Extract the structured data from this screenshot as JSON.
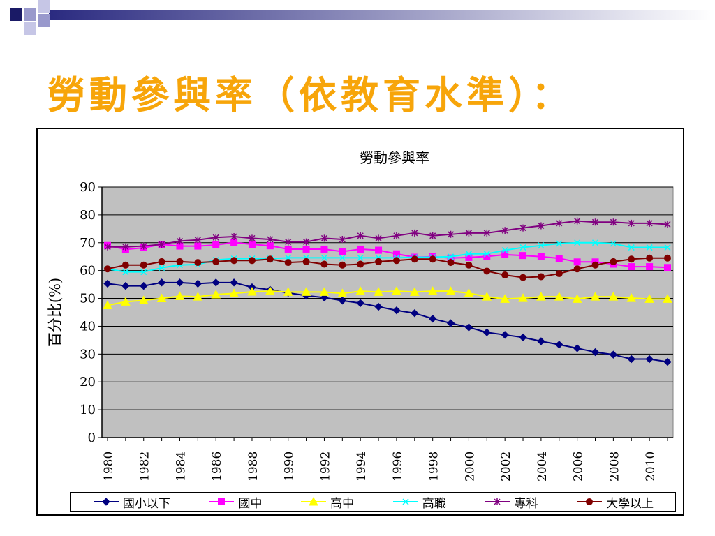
{
  "slide": {
    "title": "勞動參與率（依教育水準）："
  },
  "chart_data": {
    "type": "line",
    "title": "勞動參與率",
    "ylabel": "百分比(%)",
    "xlabel": "",
    "ylim": [
      0,
      90
    ],
    "yticks": [
      0,
      10,
      20,
      30,
      40,
      50,
      60,
      70,
      80,
      90
    ],
    "xticks": [
      "1980",
      "1982",
      "1984",
      "1986",
      "1988",
      "1990",
      "1992",
      "1994",
      "1996",
      "1998",
      "2000",
      "2002",
      "2004",
      "2006",
      "2008",
      "2010"
    ],
    "grid": true,
    "legend": "bottom",
    "x": [
      1980,
      1981,
      1982,
      1983,
      1984,
      1985,
      1986,
      1987,
      1988,
      1989,
      1990,
      1991,
      1992,
      1993,
      1994,
      1995,
      1996,
      1997,
      1998,
      1999,
      2000,
      2001,
      2002,
      2003,
      2004,
      2005,
      2006,
      2007,
      2008,
      2009,
      2010,
      2011
    ],
    "series": [
      {
        "name": "國小以下",
        "color": "#000080",
        "marker": "diamond",
        "values": [
          55.3,
          54.5,
          54.5,
          55.7,
          55.7,
          55.3,
          55.7,
          55.7,
          54,
          53.1,
          52,
          51,
          50.3,
          49.2,
          48.3,
          47,
          45.7,
          44.7,
          42.7,
          41.1,
          39.6,
          37.8,
          36.9,
          36,
          34.6,
          33.4,
          32.1,
          30.7,
          29.8,
          28.2,
          28.2,
          27.2
        ]
      },
      {
        "name": "國中",
        "color": "#ff00ff",
        "marker": "square",
        "values": [
          69,
          67.6,
          68.2,
          69.4,
          68.8,
          68.8,
          69.2,
          70.1,
          69.4,
          68.9,
          67.7,
          67.7,
          67.7,
          66.8,
          67.7,
          67.3,
          66,
          64.8,
          65,
          64.5,
          64.7,
          65.1,
          65.7,
          65.4,
          65,
          64.4,
          63.1,
          63.1,
          62.3,
          61.4,
          61.4,
          61.1
        ]
      },
      {
        "name": "高中",
        "color": "#ffff00",
        "marker": "triangle",
        "values": [
          47.5,
          48.8,
          49.3,
          50,
          50.8,
          50.6,
          51.4,
          51.8,
          52.4,
          52.6,
          52.3,
          52.3,
          52.3,
          51.8,
          52.6,
          52.3,
          52.6,
          52.3,
          52.6,
          52.6,
          51.9,
          50.6,
          49.8,
          50.1,
          50.6,
          50.6,
          49.8,
          50.6,
          50.6,
          50.1,
          49.8,
          49.8
        ]
      },
      {
        "name": "高職",
        "color": "#00ffff",
        "marker": "x",
        "values": [
          60.6,
          59.5,
          59.5,
          61,
          62,
          62.2,
          63.8,
          64.3,
          64.3,
          64.3,
          64.6,
          64.6,
          64.6,
          64.6,
          64.6,
          64.6,
          64.6,
          64.8,
          64.8,
          65,
          66,
          66,
          67.3,
          68.3,
          69,
          69.7,
          70,
          70,
          69.7,
          68.3,
          68.3,
          68.3
        ]
      },
      {
        "name": "專科",
        "color": "#800080",
        "marker": "star",
        "values": [
          68.5,
          68.5,
          68.8,
          69.4,
          70.6,
          71,
          71.9,
          72.2,
          71.6,
          71.2,
          70.3,
          70.3,
          71.6,
          71.2,
          72.5,
          71.6,
          72.5,
          73.5,
          72.5,
          73,
          73.5,
          73.5,
          74.4,
          75.3,
          76.1,
          77,
          77.8,
          77.4,
          77.4,
          77,
          77,
          76.6
        ]
      },
      {
        "name": "大學以上",
        "color": "#800000",
        "marker": "circle",
        "values": [
          60.6,
          62,
          62,
          63.2,
          63.2,
          62.9,
          63.2,
          63.6,
          63.6,
          64.1,
          62.9,
          63.2,
          62.3,
          62,
          62.3,
          63.2,
          63.6,
          64.1,
          64.1,
          62.9,
          62,
          59.8,
          58.4,
          57.5,
          57.8,
          58.9,
          60.6,
          62,
          63.2,
          64.1,
          64.5,
          64.5
        ]
      }
    ]
  }
}
